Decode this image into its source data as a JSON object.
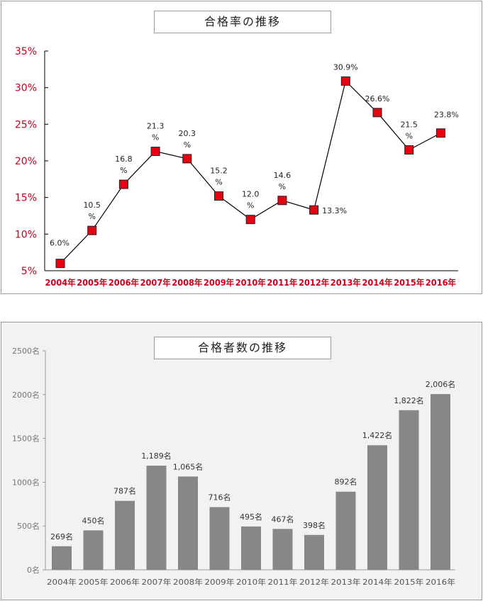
{
  "chart_data": [
    {
      "type": "line",
      "title": "合格率の推移",
      "categories": [
        "2004年",
        "2005年",
        "2006年",
        "2007年",
        "2008年",
        "2009年",
        "2010年",
        "2011年",
        "2012年",
        "2013年",
        "2014年",
        "2015年",
        "2016年"
      ],
      "values": [
        6.0,
        10.5,
        16.8,
        21.3,
        20.3,
        15.2,
        12.0,
        14.6,
        13.3,
        30.9,
        26.6,
        21.5,
        23.8
      ],
      "data_labels": [
        "6.0%",
        "10.5\n%",
        "16.8\n%",
        "21.3\n%",
        "20.3\n%",
        "15.2\n%",
        "12.0\n%",
        "14.6\n%",
        "13.3%",
        "30.9%",
        "26.6%",
        "21.5\n%",
        "23.8%"
      ],
      "ylim": [
        5,
        35
      ],
      "yticks": [
        5,
        10,
        15,
        20,
        25,
        30,
        35
      ],
      "ytick_labels": [
        "5%",
        "10%",
        "15%",
        "20%",
        "25%",
        "30%",
        "35%"
      ],
      "grid": false,
      "colors": {
        "marker": "#e60012",
        "line": "#000000",
        "axis_labels": "#c8001e"
      }
    },
    {
      "type": "bar",
      "title": "合格者数の推移",
      "categories": [
        "2004年",
        "2005年",
        "2006年",
        "2007年",
        "2008年",
        "2009年",
        "2010年",
        "2011年",
        "2012年",
        "2013年",
        "2014年",
        "2015年",
        "2016年"
      ],
      "values": [
        269,
        450,
        787,
        1189,
        1065,
        716,
        495,
        467,
        398,
        892,
        1422,
        1822,
        2006
      ],
      "data_labels": [
        "269名",
        "450名",
        "787名",
        "1,189名",
        "1,065名",
        "716名",
        "495名",
        "467名",
        "398名",
        "892名",
        "1,422名",
        "1,822名",
        "2,006名"
      ],
      "ylim": [
        0,
        2500
      ],
      "yticks": [
        0,
        500,
        1000,
        1500,
        2000,
        2500
      ],
      "ytick_labels": [
        "0名",
        "500名",
        "1000名",
        "1500名",
        "2000名",
        "2500名"
      ],
      "grid": false,
      "colors": {
        "bar": "#878787",
        "background": "#f2f2f2",
        "axis_labels": "#777777"
      }
    }
  ]
}
